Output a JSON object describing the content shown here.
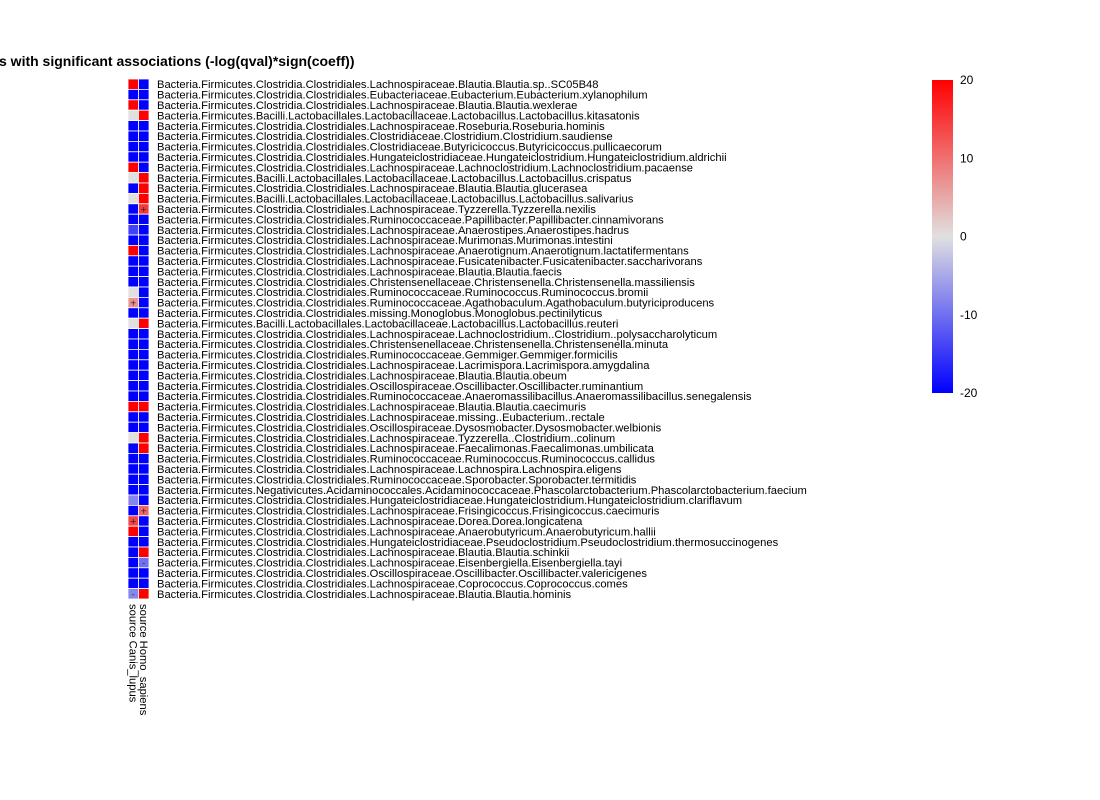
{
  "chart_data": {
    "type": "heatmap",
    "title": "s with significant associations (-log(qval)*sign(coeff))",
    "columns": [
      "source Canis_lupus",
      "source Homo_sapiens"
    ],
    "rows": [
      "Bacteria.Firmicutes.Clostridia.Clostridiales.Lachnospiraceae.Blautia.Blautia.sp..SC05B48",
      "Bacteria.Firmicutes.Clostridia.Clostridiales.Eubacteriaceae.Eubacterium.Eubacterium.xylanophilum",
      "Bacteria.Firmicutes.Clostridia.Clostridiales.Lachnospiraceae.Blautia.Blautia.wexlerae",
      "Bacteria.Firmicutes.Bacilli.Lactobacillales.Lactobacillaceae.Lactobacillus.Lactobacillus.kitasatonis",
      "Bacteria.Firmicutes.Clostridia.Clostridiales.Lachnospiraceae.Roseburia.Roseburia.hominis",
      "Bacteria.Firmicutes.Clostridia.Clostridiales.Clostridiaceae.Clostridium.Clostridium.saudiense",
      "Bacteria.Firmicutes.Clostridia.Clostridiales.Clostridiaceae.Butyricicoccus.Butyricicoccus.pullicaecorum",
      "Bacteria.Firmicutes.Clostridia.Clostridiales.Hungateiclostridiaceae.Hungateiclostridium.Hungateiclostridium.aldrichii",
      "Bacteria.Firmicutes.Clostridia.Clostridiales.Lachnospiraceae.Lachnoclostridium.Lachnoclostridium.pacaense",
      "Bacteria.Firmicutes.Bacilli.Lactobacillales.Lactobacillaceae.Lactobacillus.Lactobacillus.crispatus",
      "Bacteria.Firmicutes.Clostridia.Clostridiales.Lachnospiraceae.Blautia.Blautia.glucerasea",
      "Bacteria.Firmicutes.Bacilli.Lactobacillales.Lactobacillaceae.Lactobacillus.Lactobacillus.salivarius",
      "Bacteria.Firmicutes.Clostridia.Clostridiales.Lachnospiraceae.Tyzzerella.Tyzzerella.nexilis",
      "Bacteria.Firmicutes.Clostridia.Clostridiales.Ruminococcaceae.Papillibacter.Papillibacter.cinnamivorans",
      "Bacteria.Firmicutes.Clostridia.Clostridiales.Lachnospiraceae.Anaerostipes.Anaerostipes.hadrus",
      "Bacteria.Firmicutes.Clostridia.Clostridiales.Lachnospiraceae.Murimonas.Murimonas.intestini",
      "Bacteria.Firmicutes.Clostridia.Clostridiales.Lachnospiraceae.Anaerotignum.Anaerotignum.lactatifermentans",
      "Bacteria.Firmicutes.Clostridia.Clostridiales.Lachnospiraceae.Fusicatenibacter.Fusicatenibacter.saccharivorans",
      "Bacteria.Firmicutes.Clostridia.Clostridiales.Lachnospiraceae.Blautia.Blautia.faecis",
      "Bacteria.Firmicutes.Clostridia.Clostridiales.Christensenellaceae.Christensenella.Christensenella.massiliensis",
      "Bacteria.Firmicutes.Clostridia.Clostridiales.Ruminococcaceae.Ruminococcus.Ruminococcus.bromii",
      "Bacteria.Firmicutes.Clostridia.Clostridiales.Ruminococcaceae.Agathobaculum.Agathobaculum.butyriciproducens",
      "Bacteria.Firmicutes.Clostridia.Clostridiales.missing.Monoglobus.Monoglobus.pectinilyticus",
      "Bacteria.Firmicutes.Bacilli.Lactobacillales.Lactobacillaceae.Lactobacillus.Lactobacillus.reuteri",
      "Bacteria.Firmicutes.Clostridia.Clostridiales.Lachnospiraceae.Lachnoclostridium..Clostridium..polysaccharolyticum",
      "Bacteria.Firmicutes.Clostridia.Clostridiales.Christensenellaceae.Christensenella.Christensenella.minuta",
      "Bacteria.Firmicutes.Clostridia.Clostridiales.Ruminococcaceae.Gemmiger.Gemmiger.formicilis",
      "Bacteria.Firmicutes.Clostridia.Clostridiales.Lachnospiraceae.Lacrimispora.Lacrimispora.amygdalina",
      "Bacteria.Firmicutes.Clostridia.Clostridiales.Lachnospiraceae.Blautia.Blautia.obeum",
      "Bacteria.Firmicutes.Clostridia.Clostridiales.Oscillospiraceae.Oscillibacter.Oscillibacter.ruminantium",
      "Bacteria.Firmicutes.Clostridia.Clostridiales.Ruminococcaceae.Anaeromassilibacillus.Anaeromassilibacillus.senegalensis",
      "Bacteria.Firmicutes.Clostridia.Clostridiales.Lachnospiraceae.Blautia.Blautia.caecimuris",
      "Bacteria.Firmicutes.Clostridia.Clostridiales.Lachnospiraceae.missing..Eubacterium..rectale",
      "Bacteria.Firmicutes.Clostridia.Clostridiales.Oscillospiraceae.Dysosmobacter.Dysosmobacter.welbionis",
      "Bacteria.Firmicutes.Clostridia.Clostridiales.Lachnospiraceae.Tyzzerella..Clostridium..colinum",
      "Bacteria.Firmicutes.Clostridia.Clostridiales.Lachnospiraceae.Faecalimonas.Faecalimonas.umbilicata",
      "Bacteria.Firmicutes.Clostridia.Clostridiales.Ruminococcaceae.Ruminococcus.Ruminococcus.callidus",
      "Bacteria.Firmicutes.Clostridia.Clostridiales.Lachnospiraceae.Lachnospira.Lachnospira.eligens",
      "Bacteria.Firmicutes.Clostridia.Clostridiales.Ruminococcaceae.Sporobacter.Sporobacter.termitidis",
      "Bacteria.Firmicutes.Negativicutes.Acidaminococcales.Acidaminococcaceae.Phascolarctobacterium.Phascolarctobacterium.faecium",
      "Bacteria.Firmicutes.Clostridia.Clostridiales.Hungateiclostridiaceae.Hungateiclostridium.Hungateiclostridium.clariflavum",
      "Bacteria.Firmicutes.Clostridia.Clostridiales.Lachnospiraceae.Frisingicoccus.Frisingicoccus.caecimuris",
      "Bacteria.Firmicutes.Clostridia.Clostridiales.Lachnospiraceae.Dorea.Dorea.longicatena",
      "Bacteria.Firmicutes.Clostridia.Clostridiales.Lachnospiraceae.Anaerobutyricum.Anaerobutyricum.hallii",
      "Bacteria.Firmicutes.Clostridia.Clostridiales.Hungateiclostridiaceae.Pseudoclostridium.Pseudoclostridium.thermosuccinogenes",
      "Bacteria.Firmicutes.Clostridia.Clostridiales.Lachnospiraceae.Blautia.Blautia.schinkii",
      "Bacteria.Firmicutes.Clostridia.Clostridiales.Lachnospiraceae.Eisenbergiella.Eisenbergiella.tayi",
      "Bacteria.Firmicutes.Clostridia.Clostridiales.Oscillospiraceae.Oscillibacter.Oscillibacter.valericigenes",
      "Bacteria.Firmicutes.Clostridia.Clostridiales.Lachnospiraceae.Coprococcus.Coprococcus.comes",
      "Bacteria.Firmicutes.Clostridia.Clostridiales.Lachnospiraceae.Blautia.Blautia.hominis"
    ],
    "values": [
      [
        20,
        -20
      ],
      [
        -20,
        -20
      ],
      [
        20,
        -20
      ],
      [
        0,
        20
      ],
      [
        -20,
        -20
      ],
      [
        -20,
        -20
      ],
      [
        -20,
        -20
      ],
      [
        -20,
        -20
      ],
      [
        20,
        -20
      ],
      [
        0,
        20
      ],
      [
        -20,
        20
      ],
      [
        0,
        20
      ],
      [
        -20,
        15
      ],
      [
        -20,
        -20
      ],
      [
        -14,
        -20
      ],
      [
        -20,
        -20
      ],
      [
        20,
        -20
      ],
      [
        -20,
        -20
      ],
      [
        -20,
        -20
      ],
      [
        -20,
        -20
      ],
      [
        0,
        -20
      ],
      [
        7,
        -20
      ],
      [
        -20,
        -20
      ],
      [
        0,
        20
      ],
      [
        -20,
        -20
      ],
      [
        -20,
        -20
      ],
      [
        -20,
        -20
      ],
      [
        -20,
        -20
      ],
      [
        -20,
        -20
      ],
      [
        -20,
        -20
      ],
      [
        -20,
        -20
      ],
      [
        20,
        20
      ],
      [
        -20,
        -20
      ],
      [
        -20,
        -20
      ],
      [
        0,
        20
      ],
      [
        -20,
        20
      ],
      [
        -20,
        -20
      ],
      [
        -20,
        -20
      ],
      [
        -20,
        -20
      ],
      [
        -20,
        -20
      ],
      [
        -8,
        -20
      ],
      [
        -20,
        11
      ],
      [
        14,
        -20
      ],
      [
        20,
        -20
      ],
      [
        -20,
        -20
      ],
      [
        -20,
        20
      ],
      [
        -20,
        -10
      ],
      [
        -20,
        -20
      ],
      [
        -20,
        -20
      ],
      [
        -8,
        20
      ]
    ],
    "annotations": [
      [
        "",
        ""
      ],
      [
        "",
        ""
      ],
      [
        "",
        ""
      ],
      [
        "",
        ""
      ],
      [
        "",
        ""
      ],
      [
        "",
        ""
      ],
      [
        "",
        ""
      ],
      [
        "",
        ""
      ],
      [
        "",
        ""
      ],
      [
        "",
        ""
      ],
      [
        "",
        ""
      ],
      [
        "",
        ""
      ],
      [
        "",
        "+"
      ],
      [
        "",
        ""
      ],
      [
        "",
        ""
      ],
      [
        "",
        ""
      ],
      [
        "",
        ""
      ],
      [
        "",
        ""
      ],
      [
        "",
        ""
      ],
      [
        "",
        ""
      ],
      [
        "",
        ""
      ],
      [
        "+",
        ""
      ],
      [
        "",
        ""
      ],
      [
        "",
        ""
      ],
      [
        "",
        ""
      ],
      [
        "",
        ""
      ],
      [
        "",
        ""
      ],
      [
        "",
        ""
      ],
      [
        "",
        ""
      ],
      [
        "",
        ""
      ],
      [
        "",
        ""
      ],
      [
        "",
        ""
      ],
      [
        "",
        ""
      ],
      [
        "",
        ""
      ],
      [
        "",
        ""
      ],
      [
        "",
        ""
      ],
      [
        "",
        ""
      ],
      [
        "",
        ""
      ],
      [
        "",
        ""
      ],
      [
        "",
        ""
      ],
      [
        "",
        ""
      ],
      [
        "",
        "+"
      ],
      [
        "+",
        ""
      ],
      [
        "",
        ""
      ],
      [
        "",
        ""
      ],
      [
        "",
        ""
      ],
      [
        "",
        "-"
      ],
      [
        "",
        ""
      ],
      [
        "",
        ""
      ],
      [
        "-",
        ""
      ]
    ],
    "color_scale": {
      "low": "#0000ff",
      "mid": "#e0e0e0",
      "high": "#ff0000",
      "min": -20,
      "max": 20
    },
    "legend_ticks": [
      "20",
      "10",
      "0",
      "-10",
      "-20"
    ],
    "legend_placement": "top-right"
  }
}
